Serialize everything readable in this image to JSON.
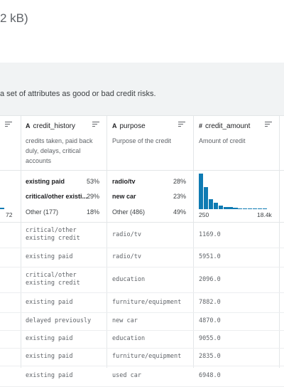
{
  "dataset": {
    "title_fragment": "2 kB)",
    "description_fragment": "a set of attributes as good or bad credit risks."
  },
  "columns": [
    {
      "name": "credit_history",
      "type_icon": "text-type-icon",
      "type_glyph": "A",
      "description": [
        "credits taken, paid back",
        "duly, delays, critical",
        "accounts"
      ],
      "top_values": [
        {
          "label": "existing paid",
          "pct": "53%"
        },
        {
          "label": "critical/other existi...",
          "pct": "29%"
        }
      ],
      "other": {
        "label": "Other (177)",
        "pct": "18%"
      }
    },
    {
      "name": "purpose",
      "type_icon": "text-type-icon",
      "type_glyph": "A",
      "description": [
        "Purpose of the credit"
      ],
      "top_values": [
        {
          "label": "radio/tv",
          "pct": "28%"
        },
        {
          "label": "new car",
          "pct": "23%"
        }
      ],
      "other": {
        "label": "Other (486)",
        "pct": "49%"
      }
    },
    {
      "name": "credit_amount",
      "type_icon": "numeric-type-icon",
      "type_glyph": "#",
      "description": [
        "Amount of credit"
      ],
      "hist_min": "250",
      "hist_max": "18.4k"
    }
  ],
  "left_partial": {
    "axis_label": "72"
  },
  "histogram": {
    "relative_heights": [
      1.0,
      0.62,
      0.28,
      0.18,
      0.1,
      0.06,
      0.05,
      0.03,
      0.02,
      0.015,
      0.01,
      0.008,
      0.006,
      0.005
    ]
  },
  "rows": [
    {
      "credit_history": [
        "critical/other",
        "existing credit"
      ],
      "purpose": "radio/tv",
      "credit_amount": "1169.0"
    },
    {
      "credit_history": [
        "existing paid"
      ],
      "purpose": "radio/tv",
      "credit_amount": "5951.0"
    },
    {
      "credit_history": [
        "critical/other",
        "existing credit"
      ],
      "purpose": "education",
      "credit_amount": "2096.0"
    },
    {
      "credit_history": [
        "existing paid"
      ],
      "purpose": "furniture/equipment",
      "credit_amount": "7882.0"
    },
    {
      "credit_history": [
        "delayed previously"
      ],
      "purpose": "new car",
      "credit_amount": "4870.0"
    },
    {
      "credit_history": [
        "existing paid"
      ],
      "purpose": "education",
      "credit_amount": "9055.0"
    },
    {
      "credit_history": [
        "existing paid"
      ],
      "purpose": "furniture/equipment",
      "credit_amount": "2835.0"
    },
    {
      "credit_history": [
        "existing paid"
      ],
      "purpose": "used car",
      "credit_amount": "6948.0"
    }
  ]
}
